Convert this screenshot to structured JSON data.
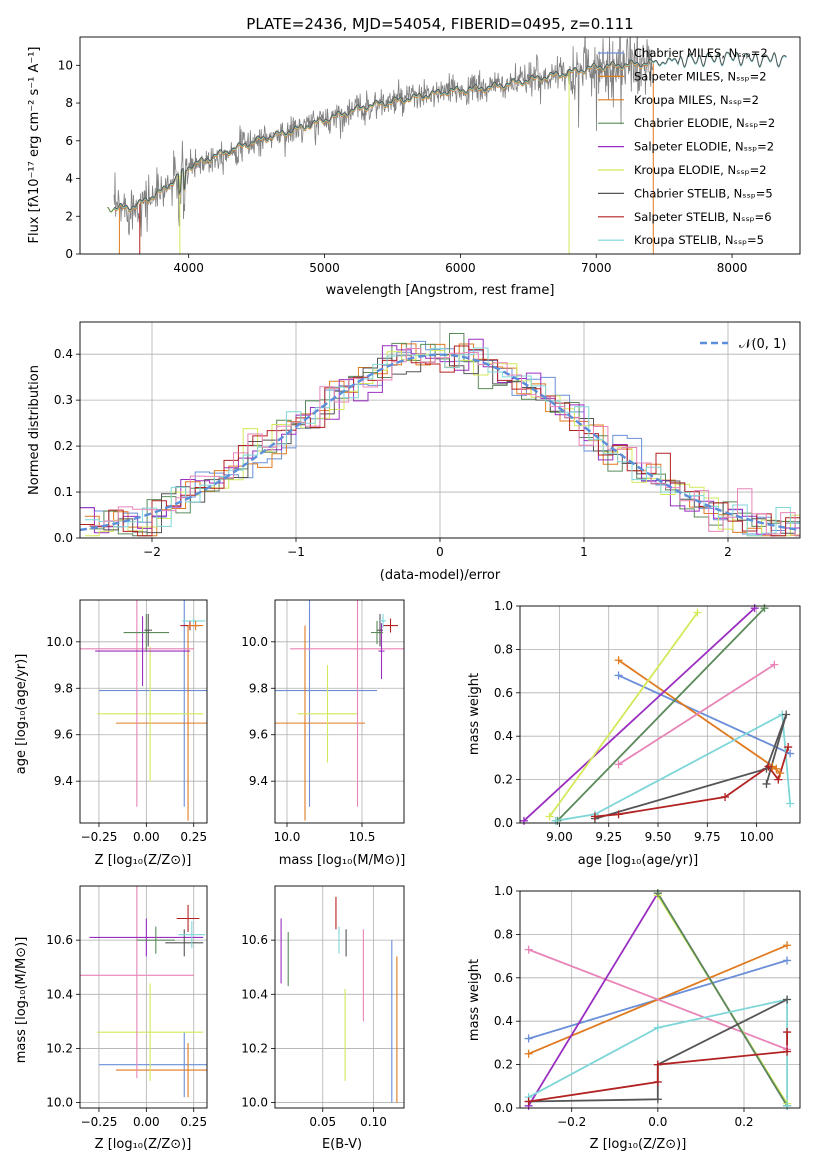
{
  "colors": {
    "Chabrier MILES": "#6a8fd8",
    "Salpeter MILES": "#e07a1f",
    "Kroupa MILES": "#e07a1f",
    "Chabrier ELODIE": "#5a8a5a",
    "Salpeter ELODIE": "#9a2ec0",
    "Kroupa ELODIE": "#d4e85a",
    "Chabrier STELIB": "#555555",
    "Salpeter STELIB": "#b22222",
    "Kroupa STELIB": "#7fd6d8",
    "pink": "#e884b8",
    "normal_curve": "#5b8fd9"
  },
  "chart_data": [
    {
      "id": "spectrum",
      "type": "line",
      "title": "PLATE=2436, MJD=54054, FIBERID=0495, z=0.111",
      "xlabel": "wavelength [Angstrom, rest frame]",
      "ylabel": "Flux [fλ10⁻¹⁷ erg cm⁻² s⁻¹ A⁻¹]",
      "xlim": [
        3200,
        8500
      ],
      "ylim": [
        0,
        11.5
      ],
      "xticks": [
        "4000",
        "5000",
        "6000",
        "7000",
        "8000"
      ],
      "yticks": [
        "0",
        "2",
        "4",
        "6",
        "8",
        "10"
      ],
      "legend_position": "top-right",
      "legend": [
        "Chabrier MILES, Nₛₛₚ=2",
        "Salpeter MILES, Nₛₛₚ=2",
        "Kroupa MILES, Nₛₛₚ=2",
        "Chabrier ELODIE, Nₛₛₚ=2",
        "Salpeter ELODIE, Nₛₛₚ=2",
        "Kroupa ELODIE, Nₛₛₚ=2",
        "Chabrier STELIB, Nₛₛₚ=5",
        "Salpeter STELIB, Nₛₛₚ=6",
        "Kroupa STELIB, Nₛₛₚ=5"
      ],
      "continuum": {
        "x": [
          3450,
          3600,
          3800,
          4000,
          4200,
          4500,
          4800,
          5000,
          5300,
          5600,
          5900,
          6200,
          6500,
          6800,
          7000,
          7200,
          7400,
          7600,
          7800,
          8000,
          8200,
          8400
        ],
        "y": [
          2.4,
          2.5,
          3.3,
          4.6,
          5.2,
          6.0,
          6.6,
          7.1,
          7.8,
          8.2,
          8.6,
          8.8,
          9.2,
          9.6,
          9.9,
          10.0,
          10.1,
          10.2,
          10.3,
          10.4,
          10.3,
          10.3
        ]
      }
    },
    {
      "id": "residuals",
      "type": "line",
      "xlabel": "(data-model)/error",
      "ylabel": "Normed distribution",
      "xlim": [
        -2.5,
        2.5
      ],
      "ylim": [
        0,
        0.47
      ],
      "xticks": [
        "−2",
        "−1",
        "0",
        "1",
        "2"
      ],
      "yticks": [
        "0.0",
        "0.1",
        "0.2",
        "0.3",
        "0.4"
      ],
      "legend_position": "top-right",
      "legend": [
        "𝒩(0, 1)"
      ],
      "normal": {
        "mu": 0,
        "sigma": 1
      }
    },
    {
      "id": "age-vs-z",
      "type": "scatter",
      "xlabel": "Z [log₁₀(Z/Z⊙)]",
      "ylabel": "age  [log₁₀(age/yr)]",
      "xlim": [
        -0.35,
        0.32
      ],
      "ylim": [
        9.22,
        10.18
      ],
      "xticks": [
        "−0.25",
        "0.00",
        "0.25"
      ],
      "yticks": [
        "9.4",
        "9.6",
        "9.8",
        "10.0"
      ],
      "points": [
        {
          "model": "Chabrier MILES",
          "x": 0.2,
          "y": 9.79,
          "xerr": 0.45,
          "yerr": 0.5
        },
        {
          "model": "Salpeter MILES",
          "x": 0.22,
          "y": 9.65,
          "xerr": 0.38,
          "yerr": 0.42
        },
        {
          "model": "Kroupa ELODIE",
          "x": 0.02,
          "y": 9.69,
          "xerr": 0.28,
          "yerr": 0.29
        },
        {
          "model": "pink",
          "x": -0.05,
          "y": 9.97,
          "xerr": 0.3,
          "yerr": 0.68
        },
        {
          "model": "Salpeter ELODIE",
          "x": -0.02,
          "y": 9.96,
          "xerr": 0.25,
          "yerr": 0.15
        },
        {
          "model": "Chabrier ELODIE",
          "x": 0.0,
          "y": 10.04,
          "xerr": 0.12,
          "yerr": 0.08
        },
        {
          "model": "Chabrier STELIB",
          "x": 0.01,
          "y": 10.05,
          "xerr": 0.02,
          "yerr": 0.07
        },
        {
          "model": "Salpeter STELIB",
          "x": 0.23,
          "y": 10.07,
          "xerr": 0.05,
          "yerr": 0.02
        },
        {
          "model": "Kroupa STELIB",
          "x": 0.25,
          "y": 10.09,
          "xerr": 0.06,
          "yerr": 0.01
        },
        {
          "model": "Kroupa MILES",
          "x": 0.26,
          "y": 10.07,
          "xerr": 0.04,
          "yerr": 0.02
        }
      ]
    },
    {
      "id": "age-vs-mass",
      "type": "scatter",
      "xlabel": "mass [log₁₀(M/M⊙)]",
      "ylabel": "",
      "xlim": [
        9.92,
        10.78
      ],
      "ylim": [
        9.22,
        10.18
      ],
      "xticks": [
        "10.0",
        "10.5"
      ],
      "yticks": [
        "9.4",
        "9.6",
        "9.8",
        "10.0"
      ],
      "points": [
        {
          "model": "Chabrier MILES",
          "x": 10.15,
          "y": 9.79,
          "xerr": 0.45,
          "yerr": 0.5
        },
        {
          "model": "Salpeter MILES",
          "x": 10.12,
          "y": 9.65,
          "xerr": 0.4,
          "yerr": 0.42
        },
        {
          "model": "Kroupa ELODIE",
          "x": 10.27,
          "y": 9.69,
          "xerr": 0.2,
          "yerr": 0.21
        },
        {
          "model": "pink",
          "x": 10.47,
          "y": 9.97,
          "xerr": 0.45,
          "yerr": 0.68
        },
        {
          "model": "Salpeter ELODIE",
          "x": 10.63,
          "y": 9.96,
          "xerr": 0.02,
          "yerr": 0.12
        },
        {
          "model": "Chabrier ELODIE",
          "x": 10.6,
          "y": 10.04,
          "xerr": 0.04,
          "yerr": 0.05
        },
        {
          "model": "Chabrier STELIB",
          "x": 10.62,
          "y": 10.05,
          "xerr": 0.02,
          "yerr": 0.07
        },
        {
          "model": "Salpeter STELIB",
          "x": 10.69,
          "y": 10.07,
          "xerr": 0.05,
          "yerr": 0.03
        },
        {
          "model": "Kroupa STELIB",
          "x": 10.64,
          "y": 10.09,
          "xerr": 0.02,
          "yerr": 0.03
        }
      ]
    },
    {
      "id": "weight-vs-age",
      "type": "line",
      "xlabel": "age  [log₁₀(age/yr)]",
      "ylabel": "mass weight",
      "xlim": [
        8.8,
        10.22
      ],
      "ylim": [
        0,
        1.0
      ],
      "xticks": [
        "9.00",
        "9.25",
        "9.50",
        "9.75",
        "10.00"
      ],
      "yticks": [
        "0.0",
        "0.2",
        "0.4",
        "0.6",
        "0.8",
        "1.0"
      ],
      "series": [
        {
          "model": "Chabrier MILES",
          "x": [
            9.3,
            10.17
          ],
          "y": [
            0.68,
            0.32
          ]
        },
        {
          "model": "Salpeter MILES",
          "x": [
            9.3,
            10.1
          ],
          "y": [
            0.75,
            0.25
          ]
        },
        {
          "model": "Kroupa MILES",
          "x": [
            10.08,
            10.12
          ],
          "y": [
            0.26,
            0.23
          ]
        },
        {
          "model": "Salpeter ELODIE",
          "x": [
            8.82,
            9.99
          ],
          "y": [
            0.01,
            0.99
          ]
        },
        {
          "model": "Kroupa ELODIE",
          "x": [
            8.95,
            9.7
          ],
          "y": [
            0.03,
            0.97
          ]
        },
        {
          "model": "Chabrier ELODIE",
          "x": [
            8.99,
            10.04
          ],
          "y": [
            0.01,
            0.99
          ]
        },
        {
          "model": "pink",
          "x": [
            9.3,
            10.09
          ],
          "y": [
            0.27,
            0.73
          ]
        },
        {
          "model": "Kroupa STELIB",
          "x": [
            8.98,
            9.18,
            10.13,
            10.17
          ],
          "y": [
            0.01,
            0.04,
            0.5,
            0.09
          ]
        },
        {
          "model": "Chabrier STELIB",
          "x": [
            9.18,
            10.05,
            10.15,
            10.05
          ],
          "y": [
            0.02,
            0.25,
            0.5,
            0.18
          ]
        },
        {
          "model": "Salpeter STELIB",
          "x": [
            9.18,
            9.3,
            9.84,
            10.06,
            10.11,
            10.16
          ],
          "y": [
            0.03,
            0.04,
            0.12,
            0.26,
            0.2,
            0.35
          ]
        }
      ]
    },
    {
      "id": "mass-vs-z",
      "type": "scatter",
      "xlabel": "Z [log₁₀(Z/Z⊙)]",
      "ylabel": "mass [log₁₀(M/M⊙)]",
      "xlim": [
        -0.35,
        0.32
      ],
      "ylim": [
        9.98,
        10.8
      ],
      "xticks": [
        "−0.25",
        "0.00",
        "0.25"
      ],
      "yticks": [
        "10.0",
        "10.2",
        "10.4",
        "10.6"
      ],
      "points": [
        {
          "model": "Chabrier MILES",
          "x": 0.2,
          "y": 10.14,
          "xerr": 0.45,
          "yerr": 0.12
        },
        {
          "model": "Salpeter MILES",
          "x": 0.22,
          "y": 10.12,
          "xerr": 0.38,
          "yerr": 0.1
        },
        {
          "model": "Kroupa ELODIE",
          "x": 0.02,
          "y": 10.26,
          "xerr": 0.28,
          "yerr": 0.18
        },
        {
          "model": "pink",
          "x": -0.05,
          "y": 10.47,
          "xerr": 0.3,
          "yerr": 0.38
        },
        {
          "model": "Salpeter ELODIE",
          "x": 0.0,
          "y": 10.61,
          "xerr": 0.3,
          "yerr": 0.07
        },
        {
          "model": "Chabrier ELODIE",
          "x": 0.05,
          "y": 10.6,
          "xerr": 0.1,
          "yerr": 0.05
        },
        {
          "model": "Chabrier STELIB",
          "x": 0.2,
          "y": 10.59,
          "xerr": 0.1,
          "yerr": 0.05
        },
        {
          "model": "Salpeter STELIB",
          "x": 0.22,
          "y": 10.68,
          "xerr": 0.06,
          "yerr": 0.05
        },
        {
          "model": "Kroupa STELIB",
          "x": 0.24,
          "y": 10.62,
          "xerr": 0.07,
          "yerr": 0.05
        }
      ]
    },
    {
      "id": "mass-vs-ebv",
      "type": "scatter",
      "xlabel": "E(B-V)",
      "ylabel": "",
      "xlim": [
        0.003,
        0.13
      ],
      "ylim": [
        9.98,
        10.8
      ],
      "xticks": [
        "0.05",
        "0.10"
      ],
      "yticks": [
        "10.0",
        "10.2",
        "10.4",
        "10.6"
      ],
      "points": [
        {
          "model": "Salpeter ELODIE",
          "x": 0.009,
          "y": 10.56,
          "yerr": 0.12
        },
        {
          "model": "Chabrier ELODIE",
          "x": 0.016,
          "y": 10.53,
          "yerr": 0.1
        },
        {
          "model": "Salpeter STELIB",
          "x": 0.063,
          "y": 10.7,
          "yerr": 0.06
        },
        {
          "model": "Kroupa STELIB",
          "x": 0.066,
          "y": 10.6,
          "yerr": 0.05
        },
        {
          "model": "Kroupa ELODIE",
          "x": 0.072,
          "y": 10.25,
          "yerr": 0.17
        },
        {
          "model": "Chabrier STELIB",
          "x": 0.073,
          "y": 10.59,
          "yerr": 0.05
        },
        {
          "model": "pink",
          "x": 0.09,
          "y": 10.47,
          "yerr": 0.17
        },
        {
          "model": "Chabrier MILES",
          "x": 0.118,
          "y": 10.3,
          "yerr": 0.3
        },
        {
          "model": "Salpeter MILES",
          "x": 0.123,
          "y": 10.27,
          "yerr": 0.27
        }
      ]
    },
    {
      "id": "weight-vs-z",
      "type": "line",
      "xlabel": "Z [log₁₀(Z/Z⊙)]",
      "ylabel": "mass weight",
      "xlim": [
        -0.32,
        0.33
      ],
      "ylim": [
        0,
        1.0
      ],
      "xticks": [
        "−0.2",
        "0.0",
        "0.2"
      ],
      "yticks": [
        "0.0",
        "0.2",
        "0.4",
        "0.6",
        "0.8",
        "1.0"
      ],
      "series": [
        {
          "model": "Chabrier MILES",
          "x": [
            -0.3,
            0.3
          ],
          "y": [
            0.32,
            0.68
          ]
        },
        {
          "model": "Salpeter MILES",
          "x": [
            -0.3,
            0.3
          ],
          "y": [
            0.25,
            0.75
          ]
        },
        {
          "model": "pink",
          "x": [
            -0.3,
            0.3
          ],
          "y": [
            0.73,
            0.27
          ]
        },
        {
          "model": "Salpeter ELODIE",
          "x": [
            -0.3,
            0.0,
            0.3
          ],
          "y": [
            0.01,
            0.99,
            0.01
          ]
        },
        {
          "model": "Kroupa ELODIE",
          "x": [
            0.0,
            0.3
          ],
          "y": [
            0.98,
            0.02
          ]
        },
        {
          "model": "Chabrier ELODIE",
          "x": [
            0.0,
            0.3
          ],
          "y": [
            0.99,
            0.01
          ]
        },
        {
          "model": "Kroupa STELIB",
          "x": [
            -0.3,
            0.0,
            0.3,
            0.3
          ],
          "y": [
            0.05,
            0.37,
            0.5,
            0.01
          ]
        },
        {
          "model": "Chabrier STELIB",
          "x": [
            -0.3,
            0.0,
            0.0,
            0.3
          ],
          "y": [
            0.03,
            0.04,
            0.2,
            0.5
          ]
        },
        {
          "model": "Salpeter STELIB",
          "x": [
            -0.3,
            0.0,
            0.0,
            0.3,
            0.3
          ],
          "y": [
            0.03,
            0.12,
            0.2,
            0.26,
            0.35
          ]
        }
      ]
    }
  ]
}
